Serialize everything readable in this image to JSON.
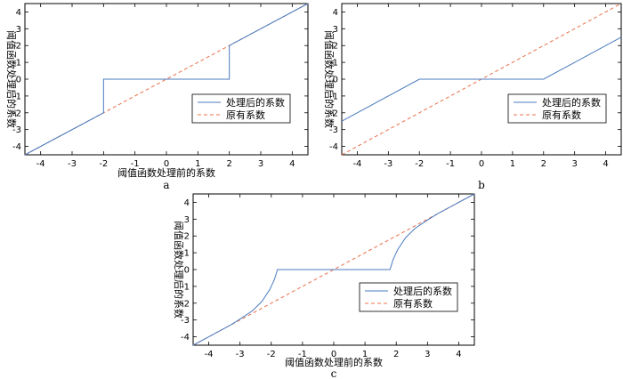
{
  "chart_data": [
    {
      "id": "a",
      "type": "line",
      "panel_label": "a",
      "xlabel": "阈值函数处理前的系数",
      "ylabel": "阈值函数处理后的系数",
      "xlim": [
        -4.5,
        4.5
      ],
      "ylim": [
        -4.5,
        4.5
      ],
      "xticks": [
        -4,
        -3,
        -2,
        -1,
        0,
        1,
        2,
        3,
        4
      ],
      "yticks": [
        -4,
        -3,
        -2,
        -1,
        0,
        1,
        2,
        3,
        4
      ],
      "legend": {
        "position": "lower-right",
        "entries": [
          "处理后的系数",
          "原有系数"
        ]
      },
      "series": [
        {
          "name": "处理后的系数",
          "color": "#4a7bbf",
          "dash": "solid",
          "x": [
            -4.5,
            -2,
            -2,
            2,
            2,
            4.5
          ],
          "y": [
            -4.5,
            -2,
            0,
            0,
            2,
            4.5
          ]
        },
        {
          "name": "原有系数",
          "color": "#e8704a",
          "dash": "dashed",
          "x": [
            -4.5,
            4.5
          ],
          "y": [
            -4.5,
            4.5
          ]
        }
      ]
    },
    {
      "id": "b",
      "type": "line",
      "panel_label": "b",
      "xlabel": "",
      "ylabel": "阈值函数处理后的系数",
      "xlim": [
        -4.5,
        4.5
      ],
      "ylim": [
        -4.5,
        4.5
      ],
      "xticks": [
        -4,
        -3,
        -2,
        -1,
        0,
        1,
        2,
        3,
        4
      ],
      "yticks": [
        -4,
        -3,
        -2,
        -1,
        0,
        1,
        2,
        3,
        4
      ],
      "legend": {
        "position": "lower-right",
        "entries": [
          "处理后的系数",
          "原有系数"
        ]
      },
      "series": [
        {
          "name": "处理后的系数",
          "color": "#4a7bbf",
          "dash": "solid",
          "x": [
            -4.5,
            -2,
            2,
            4.5
          ],
          "y": [
            -2.5,
            0,
            0,
            2.5
          ]
        },
        {
          "name": "原有系数",
          "color": "#e8704a",
          "dash": "dashed",
          "x": [
            -4.5,
            4.5
          ],
          "y": [
            -4.5,
            4.5
          ]
        }
      ]
    },
    {
      "id": "c",
      "type": "line",
      "panel_label": "c",
      "xlabel": "阈值函数处理前的系数",
      "ylabel": "阈值函数处理后的系数",
      "xlim": [
        -4.5,
        4.5
      ],
      "ylim": [
        -4.5,
        4.5
      ],
      "xticks": [
        -4,
        -3,
        -2,
        -1,
        0,
        1,
        2,
        3,
        4
      ],
      "yticks": [
        -4,
        -3,
        -2,
        -1,
        0,
        1,
        2,
        3,
        4
      ],
      "legend": {
        "position": "lower-right",
        "entries": [
          "处理后的系数",
          "原有系数"
        ]
      },
      "series": [
        {
          "name": "处理后的系数",
          "color": "#4a7bbf",
          "dash": "solid",
          "x": [
            -4.5,
            -3.3,
            -3.0,
            -2.6,
            -2.3,
            -2.05,
            -1.9,
            -1.8,
            1.8,
            1.9,
            2.05,
            2.3,
            2.6,
            3.0,
            3.3,
            4.5
          ],
          "y": [
            -4.5,
            -3.3,
            -2.95,
            -2.45,
            -1.9,
            -1.2,
            -0.6,
            0,
            0,
            0.6,
            1.2,
            1.9,
            2.45,
            2.95,
            3.3,
            4.5
          ]
        },
        {
          "name": "原有系数",
          "color": "#e8704a",
          "dash": "dashed",
          "x": [
            -4.5,
            4.5
          ],
          "y": [
            -4.5,
            4.5
          ]
        }
      ]
    }
  ]
}
